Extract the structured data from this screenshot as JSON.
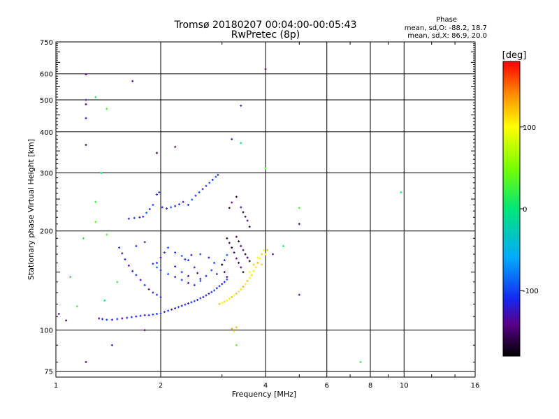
{
  "chart_data": {
    "type": "scatter",
    "title": "Tromsø 20180207 00:04:00-00:05:43",
    "subtitle": "RwPretec (8p)",
    "xlabel": "Frequency [MHz]",
    "ylabel": "Stationary phase Virtual Height [km]",
    "x_scale": "log",
    "y_scale": "log",
    "xlim": [
      1,
      16
    ],
    "ylim": [
      72,
      750
    ],
    "x_ticks": [
      1,
      2,
      4,
      6,
      8,
      10,
      16
    ],
    "y_ticks": [
      75,
      100,
      200,
      300,
      400,
      500,
      600,
      750
    ],
    "grid": true,
    "stats": {
      "title": "Phase",
      "line_o": "mean, sd,O: -88.2, 18.7",
      "line_x": "mean, sd,X:  86.9, 20.0"
    },
    "colorbar": {
      "label": "[deg]",
      "range": [
        -180,
        180
      ],
      "ticks": [
        100,
        0,
        -100
      ],
      "colormap": "rainbow"
    },
    "series": [
      {
        "points": [
          [
            1.33,
            108.5
          ],
          [
            1.36,
            108
          ],
          [
            1.4,
            107.5
          ],
          [
            1.45,
            107.5
          ],
          [
            1.5,
            108
          ],
          [
            1.55,
            108.5
          ],
          [
            1.6,
            109
          ],
          [
            1.65,
            109.5
          ],
          [
            1.7,
            110
          ],
          [
            1.75,
            110.5
          ],
          [
            1.8,
            111
          ],
          [
            1.85,
            111
          ],
          [
            1.9,
            111.5
          ],
          [
            1.95,
            112
          ],
          [
            2.0,
            112.5
          ],
          [
            2.05,
            113.5
          ],
          [
            2.1,
            114.5
          ],
          [
            2.15,
            115.5
          ],
          [
            2.2,
            116.5
          ],
          [
            2.25,
            117.5
          ],
          [
            2.3,
            118.5
          ],
          [
            2.35,
            119.5
          ],
          [
            2.4,
            120.5
          ],
          [
            2.45,
            121.5
          ],
          [
            2.5,
            122.5
          ],
          [
            2.55,
            123.5
          ],
          [
            2.6,
            125
          ],
          [
            2.65,
            126
          ],
          [
            2.7,
            127.5
          ],
          [
            2.75,
            129
          ],
          [
            2.8,
            130.5
          ],
          [
            2.85,
            132
          ],
          [
            2.9,
            134
          ],
          [
            2.95,
            136
          ],
          [
            3.0,
            138
          ],
          [
            3.05,
            140
          ],
          [
            3.1,
            142.5
          ]
        ],
        "phase": -115
      },
      {
        "points": [
          [
            1.52,
            178
          ],
          [
            1.55,
            171
          ],
          [
            1.58,
            164
          ],
          [
            1.62,
            157
          ],
          [
            1.66,
            151
          ],
          [
            1.7,
            147
          ],
          [
            1.75,
            142
          ],
          [
            1.8,
            137
          ],
          [
            1.85,
            133
          ],
          [
            1.9,
            130
          ],
          [
            1.95,
            128
          ],
          [
            2.0,
            126
          ],
          [
            1.95,
            160
          ],
          [
            2.0,
            166
          ],
          [
            2.05,
            172
          ],
          [
            2.1,
            178
          ],
          [
            2.2,
            156
          ],
          [
            2.3,
            150
          ],
          [
            2.4,
            146
          ],
          [
            2.5,
            155
          ],
          [
            2.55,
            149
          ],
          [
            2.6,
            143
          ],
          [
            2.4,
            163
          ],
          [
            2.45,
            169
          ],
          [
            1.7,
            180
          ],
          [
            1.8,
            185
          ]
        ],
        "phase": -120
      },
      {
        "points": [
          [
            1.9,
            159
          ],
          [
            1.95,
            155
          ],
          [
            2.0,
            152
          ],
          [
            2.1,
            148
          ],
          [
            2.2,
            145
          ],
          [
            2.3,
            142
          ],
          [
            2.4,
            139
          ],
          [
            2.5,
            137
          ],
          [
            2.6,
            141
          ],
          [
            2.7,
            146
          ],
          [
            2.8,
            152
          ],
          [
            2.9,
            148
          ],
          [
            2.2,
            172
          ],
          [
            2.3,
            168
          ],
          [
            2.35,
            164
          ],
          [
            2.6,
            170
          ],
          [
            2.75,
            166
          ],
          [
            2.85,
            160
          ],
          [
            3.0,
            158
          ],
          [
            3.05,
            163
          ],
          [
            3.1,
            169
          ]
        ],
        "phase": -105
      },
      {
        "points": [
          [
            1.62,
            218
          ],
          [
            1.68,
            219
          ],
          [
            1.74,
            220
          ],
          [
            1.78,
            221
          ],
          [
            1.82,
            227
          ],
          [
            1.86,
            233
          ],
          [
            1.9,
            240
          ],
          [
            1.95,
            258
          ],
          [
            1.98,
            262
          ],
          [
            2.02,
            236
          ],
          [
            2.08,
            234
          ],
          [
            2.14,
            236
          ],
          [
            2.2,
            238
          ],
          [
            2.26,
            241
          ],
          [
            2.32,
            245
          ],
          [
            2.4,
            240
          ],
          [
            2.46,
            249
          ],
          [
            2.52,
            256
          ],
          [
            2.58,
            262
          ],
          [
            2.64,
            268
          ],
          [
            2.7,
            274
          ],
          [
            2.76,
            280
          ],
          [
            2.82,
            286
          ],
          [
            2.88,
            292
          ],
          [
            2.92,
            296
          ]
        ],
        "phase": -110
      },
      {
        "points": [
          [
            3.0,
            158
          ],
          [
            3.05,
            150
          ],
          [
            3.1,
            145
          ],
          [
            3.1,
            190
          ],
          [
            3.15,
            184
          ],
          [
            3.2,
            178
          ],
          [
            3.25,
            172
          ],
          [
            3.3,
            165
          ],
          [
            3.35,
            160
          ],
          [
            3.4,
            155
          ],
          [
            3.45,
            150
          ],
          [
            3.3,
            192
          ],
          [
            3.35,
            186
          ],
          [
            3.4,
            180
          ],
          [
            3.45,
            175
          ],
          [
            3.5,
            170
          ],
          [
            3.55,
            166
          ],
          [
            3.6,
            162
          ],
          [
            3.15,
            235
          ],
          [
            3.2,
            244
          ],
          [
            3.3,
            254
          ],
          [
            3.4,
            236
          ],
          [
            3.45,
            228
          ],
          [
            3.5,
            221
          ],
          [
            3.55,
            215
          ],
          [
            3.6,
            206
          ]
        ],
        "phase": -155
      },
      {
        "points": [
          [
            2.95,
            120
          ],
          [
            3.0,
            121
          ],
          [
            3.05,
            122
          ],
          [
            3.1,
            123
          ],
          [
            3.15,
            124.5
          ],
          [
            3.2,
            126
          ],
          [
            3.25,
            127.5
          ],
          [
            3.3,
            129
          ],
          [
            3.35,
            131
          ],
          [
            3.4,
            133
          ],
          [
            3.45,
            135.5
          ],
          [
            3.5,
            138
          ],
          [
            3.55,
            141
          ],
          [
            3.6,
            144
          ],
          [
            3.65,
            147
          ],
          [
            3.7,
            151
          ],
          [
            3.75,
            155
          ],
          [
            3.8,
            160
          ],
          [
            3.85,
            165
          ],
          [
            3.9,
            170
          ],
          [
            3.95,
            175
          ],
          [
            4.0,
            170
          ],
          [
            4.05,
            175
          ],
          [
            3.6,
            150
          ],
          [
            3.7,
            158
          ],
          [
            3.8,
            166
          ],
          [
            3.9,
            158
          ],
          [
            3.2,
            101
          ],
          [
            3.25,
            99
          ],
          [
            3.3,
            102
          ]
        ],
        "phase": 110
      },
      {
        "points": [
          [
            1.22,
            598
          ],
          [
            1.22,
            500
          ],
          [
            1.22,
            485
          ],
          [
            1.22,
            440
          ],
          [
            1.22,
            365
          ],
          [
            1.66,
            570
          ],
          [
            1.95,
            345
          ],
          [
            2.2,
            360
          ],
          [
            3.2,
            380
          ],
          [
            4.0,
            620
          ],
          [
            3.4,
            480
          ],
          [
            5.0,
            210
          ],
          [
            4.2,
            170
          ],
          [
            5.0,
            128
          ],
          [
            1.22,
            80
          ],
          [
            1.45,
            90
          ],
          [
            1.8,
            100
          ],
          [
            1.02,
            112
          ],
          [
            1.07,
            107
          ]
        ],
        "phase": -140
      },
      {
        "points": [
          [
            1.3,
            510
          ],
          [
            1.4,
            470
          ],
          [
            1.35,
            300
          ],
          [
            1.3,
            245
          ],
          [
            1.3,
            213
          ],
          [
            1.2,
            190
          ],
          [
            1.4,
            195
          ],
          [
            1.1,
            145
          ],
          [
            1.15,
            118
          ],
          [
            1.38,
            123
          ],
          [
            1.5,
            140
          ],
          [
            4.0,
            310
          ],
          [
            9.8,
            262
          ],
          [
            5.0,
            235
          ],
          [
            3.4,
            370
          ],
          [
            7.5,
            80
          ],
          [
            3.3,
            90
          ],
          [
            4.5,
            180
          ]
        ],
        "phase": 20
      }
    ]
  }
}
